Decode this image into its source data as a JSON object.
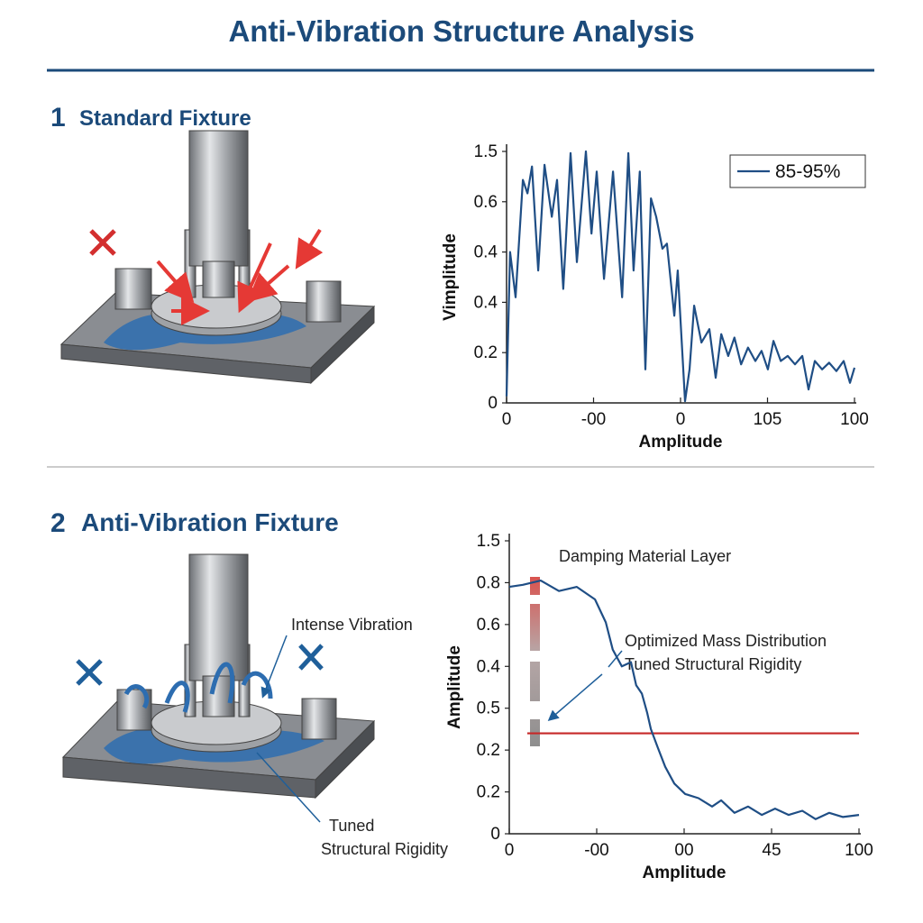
{
  "title": "Anti-Vibration Structure Analysis",
  "sections": [
    {
      "number": "1",
      "heading": "Standard Fixture"
    },
    {
      "number": "2",
      "heading": "Anti-Vibration Fixture",
      "callouts": [
        "Intense Vibration",
        "Tuned",
        "Structural Rigidity"
      ]
    }
  ],
  "chart_data": [
    {
      "type": "line",
      "ylabel": "Vimplitude",
      "xlabel": "Amplitude",
      "legend": "top-right",
      "grid": false,
      "xlim": [
        0,
        100
      ],
      "ylim": [
        0,
        1.5
      ],
      "xticks": [
        0,
        {
          "value": 25,
          "label": "-00"
        },
        {
          "value": 50,
          "label": "0"
        },
        {
          "value": 75,
          "label": "105"
        },
        100
      ],
      "yticks": [
        0,
        {
          "value": 0.3,
          "label": "0.2"
        },
        {
          "value": 0.6,
          "label": "0.4"
        },
        {
          "value": 0.9,
          "label": "0.4"
        },
        {
          "value": 1.2,
          "label": "0.6"
        },
        1.5
      ],
      "x": [
        0,
        1,
        2.6,
        4.7,
        6,
        7.3,
        9.1,
        10.9,
        13,
        14.5,
        16.3,
        18.4,
        20.2,
        22.8,
        24.4,
        25.9,
        28,
        30.6,
        33.2,
        35,
        36.5,
        38.3,
        39.9,
        41.5,
        43,
        44.8,
        46.1,
        48.2,
        49.2,
        51.3,
        52.6,
        53.9,
        56,
        58.3,
        60.1,
        61.7,
        63.7,
        65.5,
        67.4,
        69.4,
        71.5,
        73.3,
        75.1,
        76.7,
        78.8,
        80.8,
        82.9,
        85,
        86.8,
        88.6,
        90.7,
        92.7,
        94.8,
        96.9,
        98.7,
        100
      ],
      "series": [
        {
          "name": "85-95%",
          "color": "#1f4e85",
          "values": [
            0.04,
            0.9,
            0.63,
            1.33,
            1.25,
            1.41,
            0.79,
            1.42,
            1.11,
            1.33,
            0.68,
            1.49,
            0.84,
            1.5,
            1.01,
            1.38,
            0.74,
            1.38,
            0.63,
            1.49,
            0.79,
            1.38,
            0.2,
            1.22,
            1.11,
            0.92,
            0.95,
            0.52,
            0.79,
            0.01,
            0.2,
            0.58,
            0.36,
            0.44,
            0.15,
            0.41,
            0.28,
            0.39,
            0.23,
            0.33,
            0.25,
            0.31,
            0.2,
            0.37,
            0.25,
            0.28,
            0.23,
            0.28,
            0.08,
            0.25,
            0.2,
            0.24,
            0.19,
            0.25,
            0.12,
            0.21
          ]
        }
      ]
    },
    {
      "type": "line",
      "ylabel": "Amplitude",
      "xlabel": "Amplitude",
      "grid": false,
      "xlim": [
        0,
        100
      ],
      "ylim": [
        0,
        1.4
      ],
      "xticks": [
        0,
        {
          "value": 25,
          "label": "-00"
        },
        {
          "value": 50,
          "label": "00"
        },
        {
          "value": 75,
          "label": "45"
        },
        100
      ],
      "yticks": [
        0,
        0.2,
        {
          "value": 0.4,
          "label": "0.2"
        },
        {
          "value": 0.6,
          "label": "0.5"
        },
        {
          "value": 0.8,
          "label": "0.4"
        },
        {
          "value": 1.0,
          "label": "0.6"
        },
        {
          "value": 1.2,
          "label": "0.8"
        },
        {
          "value": 1.4,
          "label": "1.5"
        }
      ],
      "x": [
        0,
        3.9,
        9,
        14.2,
        19.3,
        24.5,
        27.6,
        29.6,
        32.2,
        34.8,
        36.3,
        37.9,
        39.4,
        40.5,
        42.5,
        44.6,
        47.2,
        50.3,
        54.1,
        58,
        60.6,
        64.4,
        68.3,
        72.2,
        76,
        79.9,
        83.8,
        87.6,
        91.5,
        95.4,
        100
      ],
      "series": [
        {
          "color": "#1f4e85",
          "values": [
            1.18,
            1.19,
            1.21,
            1.16,
            1.18,
            1.12,
            1.01,
            0.88,
            0.8,
            0.82,
            0.71,
            0.67,
            0.58,
            0.5,
            0.41,
            0.32,
            0.24,
            0.19,
            0.17,
            0.13,
            0.16,
            0.1,
            0.13,
            0.09,
            0.12,
            0.09,
            0.11,
            0.07,
            0.1,
            0.08,
            0.09
          ]
        }
      ],
      "threshold": {
        "value": 0.48,
        "color": "#c62828"
      },
      "annotations": [
        "Damping Material Layer",
        "Optimized Mass Distribution",
        "Tuned Structural Rigidity"
      ]
    }
  ]
}
